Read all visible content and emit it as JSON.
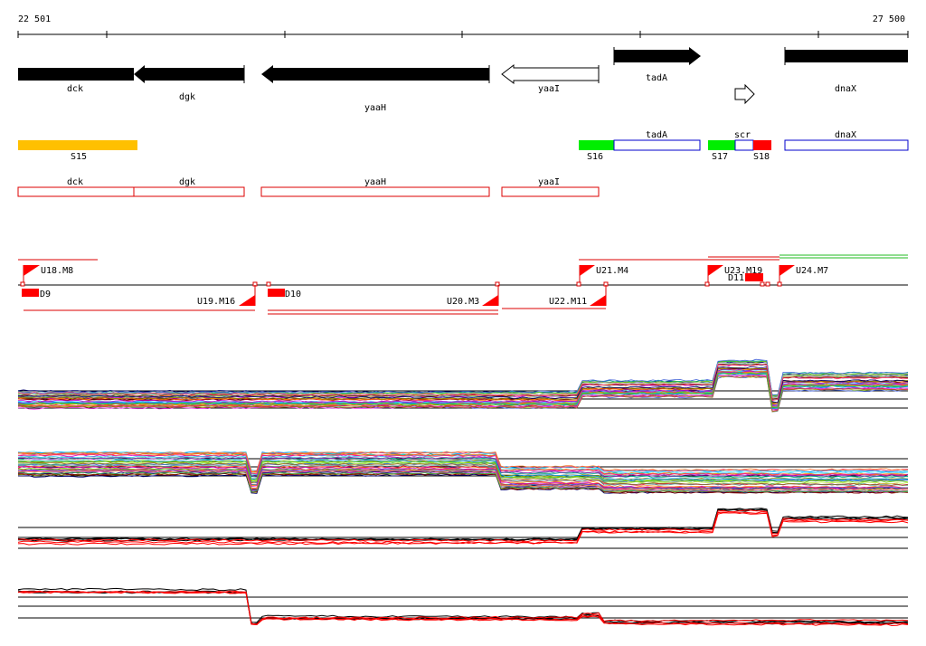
{
  "ruler": {
    "start_label": "22 501",
    "end_label": "27 500"
  },
  "colors": {
    "gene_fill": "#000000",
    "segment_yellow": "#ffc000",
    "segment_green": "#00ee00",
    "segment_red": "#ff0000",
    "outline_blue": "#0000cc",
    "outline_red": "#dd0000",
    "track_black": "#000000",
    "track_red": "#ff0000"
  },
  "genes": [
    {
      "label": "dck",
      "strand": "-",
      "filled": true
    },
    {
      "label": "dgk",
      "strand": "-",
      "filled": true
    },
    {
      "label": "yaaH",
      "strand": "-",
      "filled": true
    },
    {
      "label": "yaaI",
      "strand": "-",
      "filled": false
    },
    {
      "label": "tadA",
      "strand": "+",
      "filled": true
    },
    {
      "label": "dnaX",
      "strand": "+",
      "filled": true
    }
  ],
  "segments": [
    {
      "label": "S15"
    },
    {
      "label": "S16"
    },
    {
      "label": "S17"
    },
    {
      "label": "S18"
    }
  ],
  "upper_boxes": [
    {
      "label": "tadA"
    },
    {
      "label": "scr"
    },
    {
      "label": "dnaX"
    }
  ],
  "lower_boxes": [
    {
      "label": "dck"
    },
    {
      "label": "dgk"
    },
    {
      "label": "yaaH"
    },
    {
      "label": "yaaI"
    }
  ],
  "transcripts_upper": [
    {
      "label": "U18.M8"
    },
    {
      "label": "U21.M4"
    },
    {
      "label": "U23.M19"
    },
    {
      "label": "U24.M7"
    }
  ],
  "transcripts_lower": [
    {
      "label": "D9"
    },
    {
      "label": "U19.M16"
    },
    {
      "label": "D10"
    },
    {
      "label": "U20.M3"
    },
    {
      "label": "U22.M11"
    },
    {
      "label": "D11"
    }
  ]
}
